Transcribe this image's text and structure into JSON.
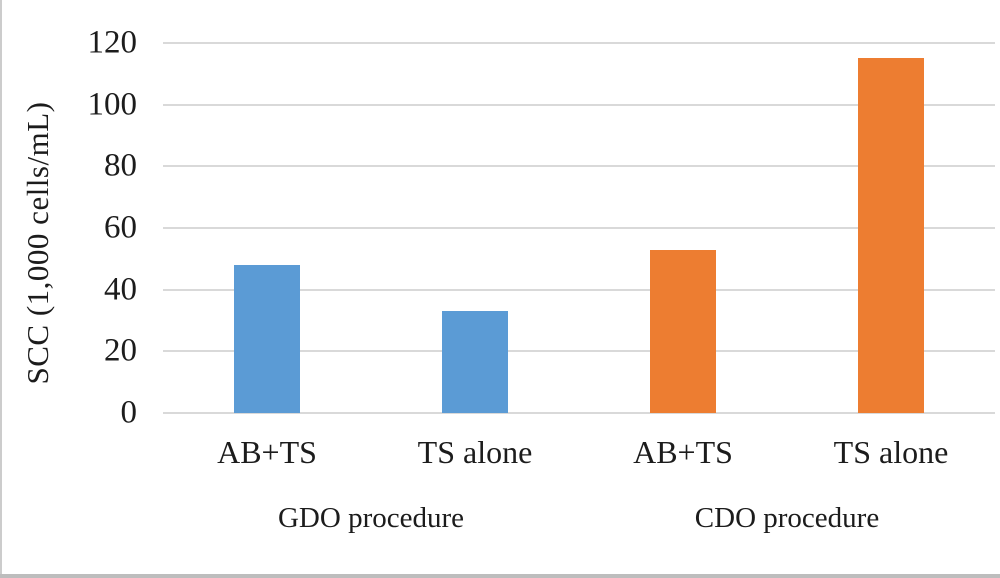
{
  "chart_data": {
    "type": "bar",
    "title": "",
    "xlabel": "",
    "ylabel": "SCC (1,000 cells/mL)",
    "ylim": [
      0,
      120
    ],
    "yticks": [
      0,
      20,
      40,
      60,
      80,
      100,
      120
    ],
    "grid": true,
    "legend_position": "none",
    "categories": [
      "AB+TS",
      "TS alone",
      "AB+TS",
      "TS alone"
    ],
    "groups": [
      {
        "label": "GDO procedure",
        "color": "#5B9BD5",
        "bars": [
          {
            "category": "AB+TS",
            "value": 48
          },
          {
            "category": "TS alone",
            "value": 33
          }
        ]
      },
      {
        "label": "CDO procedure",
        "color": "#ED7D31",
        "bars": [
          {
            "category": "AB+TS",
            "value": 53
          },
          {
            "category": "TS alone",
            "value": 115
          }
        ]
      }
    ],
    "colors": {
      "gridline": "#D9D9D9",
      "text": "#1C1C1C",
      "background": "#FFFFFF"
    }
  }
}
